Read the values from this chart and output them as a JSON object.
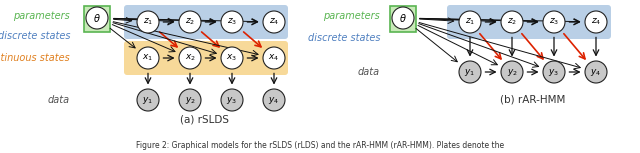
{
  "fig_width": 6.4,
  "fig_height": 1.53,
  "dpi": 100,
  "background": "#ffffff",
  "blue_bg": "#a8c4e0",
  "yellow_bg": "#f5d080",
  "green_label": "#5ab552",
  "orange_label": "#e08020",
  "gray_node": "#c8c8c8",
  "red_arrow": "#dd2200",
  "black_arrow": "#111111",
  "green_box_face": "#c8eab8",
  "green_box_edge": "#5ab552",
  "caption_left": "(a) rSLDS",
  "caption_right": "(b) rAR-HMM",
  "figure_caption": "Figure 2: Graphical models for the rSLDS (rLDS) and the rAR-HMM (rAR-HMM). Plates denote the",
  "label_parameters": "parameters",
  "label_discrete": "discrete states",
  "label_continuous": "continuous states",
  "label_data": "data"
}
